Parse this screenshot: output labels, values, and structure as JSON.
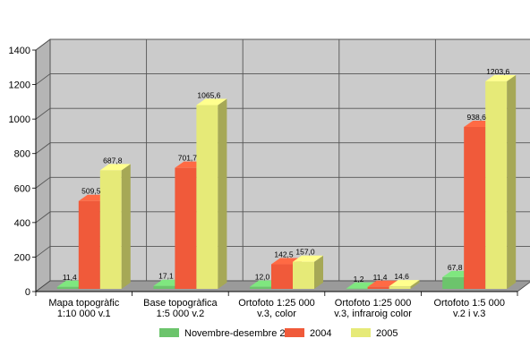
{
  "chart_data": {
    "type": "bar",
    "title": "",
    "xlabel": "",
    "ylabel": "",
    "ylim": [
      0,
      1400
    ],
    "yticks": [
      0,
      200,
      400,
      600,
      800,
      1000,
      1200,
      1400
    ],
    "ytick_labels": [
      "0",
      "200",
      "400",
      "600",
      "800",
      "1000",
      "1200",
      "1400"
    ],
    "grid": true,
    "style": "3d-column",
    "legend_position": "bottom",
    "categories": [
      [
        "Mapa topogràfic",
        "1:10 000 v.1"
      ],
      [
        "Base topogràfica",
        "1:5 000 v.2"
      ],
      [
        "Ortofoto 1:25 000",
        "v.3, color"
      ],
      [
        "Ortofoto 1:25 000",
        "v.3, infraroig color"
      ],
      [
        "Ortofoto 1:5 000",
        "v.2 i v.3"
      ]
    ],
    "series": [
      {
        "name": "Novembre-desembre 2003",
        "color": "#6cc46c",
        "values": [
          11.4,
          17.1,
          12.0,
          1.2,
          67.8
        ],
        "labels": [
          "11,4",
          "17,1",
          "12,0",
          "1,2",
          "67,8"
        ]
      },
      {
        "name": "2004",
        "color": "#f05a3a",
        "values": [
          509.5,
          701.7,
          142.5,
          11.4,
          938.6
        ],
        "labels": [
          "509,5",
          "701,7",
          "142,5",
          "11,4",
          "938,6"
        ]
      },
      {
        "name": "2005",
        "color": "#e6ea78",
        "values": [
          687.8,
          1065.6,
          157.0,
          14.6,
          1203.6
        ],
        "labels": [
          "687,8",
          "1065,6",
          "157,0",
          "14,6",
          "1203,6"
        ]
      }
    ],
    "colors": {
      "wall": "#cbcbcb",
      "floor": "#9a9a9a",
      "grid": "#555555"
    }
  }
}
